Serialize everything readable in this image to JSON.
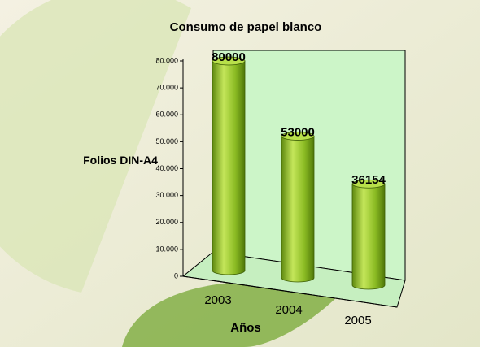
{
  "chart_data": {
    "type": "bar",
    "title": "Consumo de papel blanco",
    "y_label": "Folios DIN-A4",
    "x_label": "Años",
    "categories": [
      "2003",
      "2004",
      "2005"
    ],
    "values": [
      80000,
      53000,
      36154
    ],
    "color": "#9acd32",
    "ylim": [
      0,
      80000
    ],
    "yticks": [
      0,
      {
        "value": 10000,
        "label": "10.000"
      },
      {
        "value": 20000,
        "label": "20.000"
      },
      {
        "value": 30000,
        "label": "30.000"
      },
      {
        "value": 40000,
        "label": "40.000"
      },
      {
        "value": 50000,
        "label": "50.000"
      },
      {
        "value": 60000,
        "label": "60.000"
      },
      {
        "value": 70000,
        "label": "70.000"
      },
      {
        "value": 80000,
        "label": "80.000"
      }
    ],
    "grid": false
  }
}
